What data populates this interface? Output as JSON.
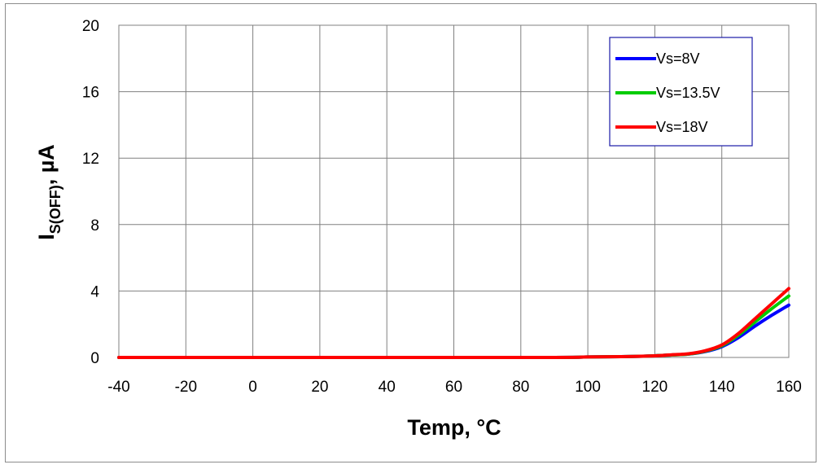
{
  "chart_data": {
    "type": "line",
    "title": "",
    "xlabel": "Temp, °C",
    "ylabel": {
      "main": "I",
      "subscript": "S(OFF)",
      "suffix": ", µA"
    },
    "xlim": [
      -40,
      160
    ],
    "ylim": [
      0,
      20
    ],
    "xticks": [
      "-40",
      "-20",
      "0",
      "20",
      "40",
      "60",
      "80",
      "100",
      "120",
      "140",
      "160"
    ],
    "yticks": [
      "0",
      "4",
      "8",
      "12",
      "16",
      "20"
    ],
    "grid": true,
    "legend_position": "top-right",
    "series": [
      {
        "name": "Vs=8V",
        "color": "#0000ff",
        "x": [
          -40,
          80,
          100,
          110,
          115,
          120,
          125,
          130,
          135,
          140,
          145,
          150,
          155,
          160
        ],
        "y": [
          0.0,
          0.0,
          0.03,
          0.05,
          0.07,
          0.1,
          0.15,
          0.2,
          0.35,
          0.65,
          1.2,
          1.9,
          2.55,
          3.15
        ]
      },
      {
        "name": "Vs=13.5V",
        "color": "#00cc00",
        "x": [
          -40,
          80,
          100,
          110,
          115,
          120,
          125,
          130,
          135,
          140,
          145,
          150,
          155,
          160
        ],
        "y": [
          0.0,
          0.0,
          0.03,
          0.05,
          0.07,
          0.1,
          0.15,
          0.2,
          0.38,
          0.7,
          1.35,
          2.15,
          2.95,
          3.7
        ]
      },
      {
        "name": "Vs=18V",
        "color": "#ff0000",
        "x": [
          -40,
          80,
          100,
          110,
          115,
          120,
          125,
          130,
          135,
          140,
          145,
          150,
          155,
          160
        ],
        "y": [
          0.0,
          0.0,
          0.03,
          0.05,
          0.07,
          0.1,
          0.16,
          0.22,
          0.4,
          0.75,
          1.45,
          2.35,
          3.25,
          4.15
        ]
      }
    ]
  }
}
